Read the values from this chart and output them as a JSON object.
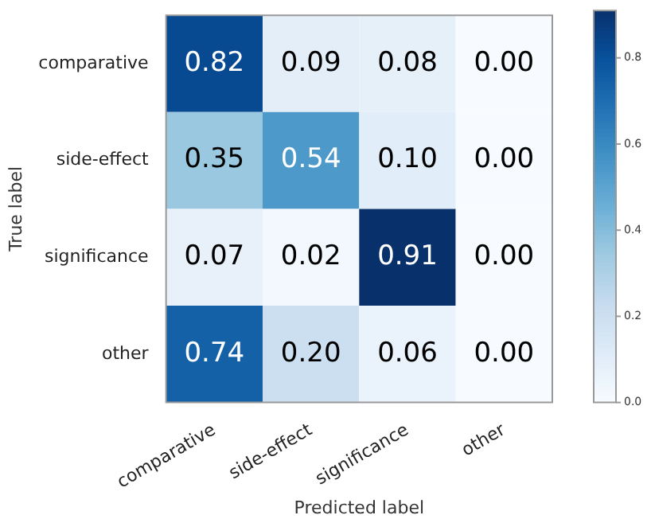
{
  "chart_data": {
    "type": "heatmap",
    "xlabel": "Predicted label",
    "ylabel": "True label",
    "categories": [
      "comparative",
      "side-effect",
      "significance",
      "other"
    ],
    "y_categories": [
      "comparative",
      "side-effect",
      "significance",
      "other"
    ],
    "cells": [
      [
        0.82,
        0.09,
        0.08,
        0.0
      ],
      [
        0.35,
        0.54,
        0.1,
        0.0
      ],
      [
        0.07,
        0.02,
        0.91,
        0.0
      ],
      [
        0.74,
        0.2,
        0.06,
        0.0
      ]
    ],
    "cell_labels": [
      [
        "0.82",
        "0.09",
        "0.08",
        "0.00"
      ],
      [
        "0.35",
        "0.54",
        "0.10",
        "0.00"
      ],
      [
        "0.07",
        "0.02",
        "0.91",
        "0.00"
      ],
      [
        "0.74",
        "0.20",
        "0.06",
        "0.00"
      ]
    ],
    "clim": [
      0,
      0.91
    ],
    "cticks": [
      {
        "value": 0,
        "label": "0.0"
      },
      {
        "value": 0.2,
        "label": "0.2"
      },
      {
        "value": 0.4,
        "label": "0.4"
      },
      {
        "value": 0.6,
        "label": "0.6"
      },
      {
        "value": 0.8,
        "label": "0.8"
      }
    ]
  }
}
